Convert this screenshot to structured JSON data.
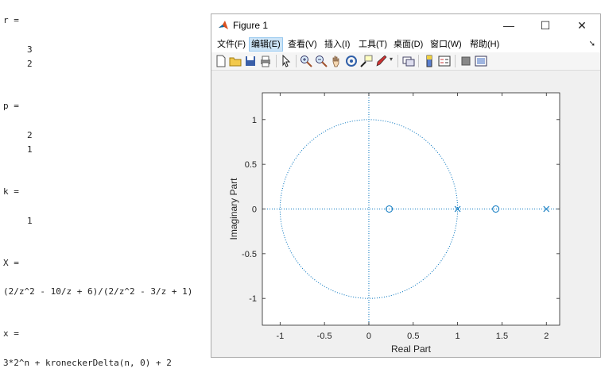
{
  "console": {
    "lines": [
      {
        "text": "r =",
        "indent": false
      },
      {
        "text": "3",
        "indent": true
      },
      {
        "text": "2",
        "indent": true
      },
      {
        "text": "p =",
        "indent": false
      },
      {
        "text": "2",
        "indent": true
      },
      {
        "text": "1",
        "indent": true
      },
      {
        "text": "k =",
        "indent": false
      },
      {
        "text": "1",
        "indent": true
      },
      {
        "text": "X =",
        "indent": false
      },
      {
        "text": "(2/z^2 - 10/z + 6)/(2/z^2 - 3/z + 1)",
        "indent": false
      },
      {
        "text": "x =",
        "indent": false
      },
      {
        "text": "3*2^n + kroneckerDelta(n, 0) + 2",
        "indent": false
      }
    ]
  },
  "window": {
    "title": "Figure 1",
    "minimize": "—",
    "maximize": "☐",
    "close": "✕"
  },
  "menu": {
    "items": [
      "文件(F)",
      "编辑(E)",
      "查看(V)",
      "插入(I)",
      "工具(T)",
      "桌面(D)",
      "窗口(W)",
      "帮助(H)"
    ],
    "active_index": 1
  },
  "toolbar": {
    "icons": [
      "new-figure-icon",
      "open-folder-icon",
      "save-icon",
      "print-icon",
      "select-pointer-icon",
      "zoom-in-icon",
      "zoom-out-icon",
      "pan-hand-icon",
      "rotate-3d-icon",
      "data-cursor-icon",
      "brush-icon",
      "link-plot-icon",
      "colorbar-icon",
      "legend-icon",
      "hide-plot-tools-icon",
      "show-plot-tools-icon"
    ]
  },
  "chart_data": {
    "type": "scatter",
    "xlabel": "Real Part",
    "ylabel": "Imaginary Part",
    "xlim": [
      -1.2,
      2.15
    ],
    "ylim": [
      -1.3,
      1.3
    ],
    "xticks": [
      "-1",
      "-0.5",
      "0",
      "0.5",
      "1",
      "1.5",
      "2"
    ],
    "xtick_values": [
      -1,
      -0.5,
      0,
      0.5,
      1,
      1.5,
      2
    ],
    "yticks": [
      "1",
      "0.5",
      "0",
      "-0.5",
      "-1"
    ],
    "ytick_values": [
      1,
      0.5,
      0,
      -0.5,
      -1
    ],
    "unit_circle": true,
    "series": [
      {
        "marker": "o",
        "points": [
          [
            0.23,
            0
          ],
          [
            1.43,
            0
          ]
        ]
      },
      {
        "marker": "x",
        "points": [
          [
            1,
            0
          ],
          [
            2,
            0
          ]
        ]
      }
    ],
    "color": "#0072bd"
  }
}
